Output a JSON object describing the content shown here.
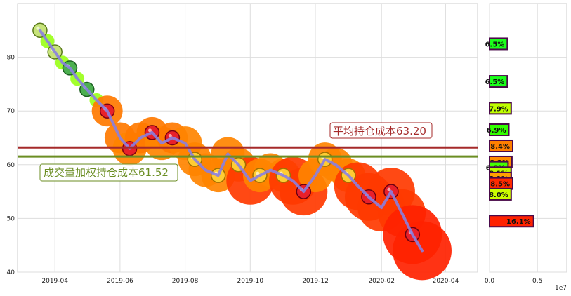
{
  "chart_data": [
    {
      "type": "line",
      "x_ticks": [
        "2019-04",
        "2019-06",
        "2019-08",
        "2019-10",
        "2019-12",
        "2020-02",
        "2020-04"
      ],
      "y_ticks": [
        "40",
        "50",
        "60",
        "70",
        "80"
      ],
      "ylim": [
        40,
        90
      ],
      "grid": true,
      "series": [
        {
          "x": [
            "2019-03-18",
            "2019-03-25",
            "2019-04-01",
            "2019-04-08",
            "2019-04-15",
            "2019-04-22",
            "2019-05-01",
            "2019-05-10",
            "2019-05-20",
            "2019-06-01",
            "2019-06-10",
            "2019-06-20",
            "2019-07-01",
            "2019-07-10",
            "2019-07-20",
            "2019-08-01",
            "2019-08-10",
            "2019-08-20",
            "2019-09-01",
            "2019-09-10",
            "2019-09-20",
            "2019-10-01",
            "2019-10-10",
            "2019-10-20",
            "2019-11-01",
            "2019-11-10",
            "2019-11-20",
            "2019-12-01",
            "2019-12-10",
            "2019-12-20",
            "2020-01-01",
            "2020-01-10",
            "2020-01-20",
            "2020-02-01",
            "2020-02-10",
            "2020-02-20",
            "2020-03-01",
            "2020-03-10"
          ],
          "values": [
            85,
            83,
            81,
            79,
            78,
            76,
            74,
            72,
            70,
            65,
            63,
            65,
            66,
            64,
            65,
            64,
            61,
            59,
            58,
            62,
            60,
            57,
            58,
            59,
            58,
            57,
            55,
            58,
            61,
            60,
            58,
            56,
            54,
            52,
            55,
            51,
            47,
            44
          ]
        }
      ],
      "reference_lines": [
        {
          "label": "平均持仓成本63.20",
          "value": 63.2,
          "color": "#a52a2a"
        },
        {
          "label": "成交量加权持仓成本61.52",
          "value": 61.52,
          "color": "#6b8e23"
        }
      ]
    },
    {
      "type": "bar",
      "orientation": "horizontal",
      "xlim": [
        0,
        1
      ],
      "x_ticks": [
        "0.0",
        "0.5"
      ],
      "x_scale_label": "1e7",
      "bars": [
        {
          "price": 82.5,
          "label": "6.5%",
          "value": 0.23,
          "color": "#1aff1a"
        },
        {
          "price": 75.5,
          "label": "6.5%",
          "value": 0.23,
          "color": "#1aff1a"
        },
        {
          "price": 70.5,
          "label": "7.9%",
          "value": 0.28,
          "color": "#bfff00"
        },
        {
          "price": 66.5,
          "label": "6.9%",
          "value": 0.25,
          "color": "#33ff00"
        },
        {
          "price": 63.5,
          "label": "8.4%",
          "value": 0.3,
          "color": "#ff7f00"
        },
        {
          "price": 60.5,
          "label": "8.2%",
          "value": 0.29,
          "color": "#ff8c00"
        },
        {
          "price": 59.5,
          "label": "6.8%",
          "value": 0.24,
          "color": "#44ff00"
        },
        {
          "price": 58.5,
          "label": "8.1%",
          "value": 0.28,
          "color": "#b8ff00"
        },
        {
          "price": 57.5,
          "label": "8.1%",
          "value": 0.28,
          "color": "#ffa000"
        },
        {
          "price": 56.5,
          "label": "8.5%",
          "value": 0.3,
          "color": "#ff2a00"
        },
        {
          "price": 54.5,
          "label": "8.0%",
          "value": 0.28,
          "color": "#ccff00"
        },
        {
          "price": 49.5,
          "label": "16.1%",
          "value": 0.57,
          "color": "#ff2200"
        }
      ]
    }
  ]
}
